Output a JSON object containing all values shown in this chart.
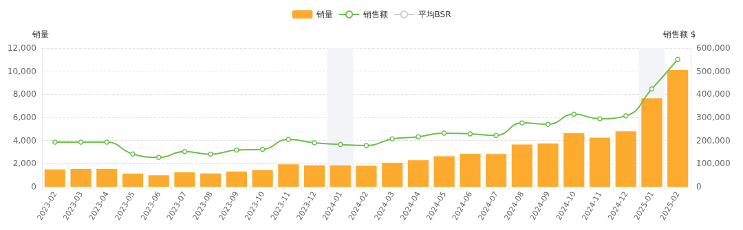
{
  "chart_data": {
    "type": "bar",
    "ylabel": "销量",
    "y2label": "销售额 $",
    "categories": [
      "2023-02",
      "2023-03",
      "2023-04",
      "2023-05",
      "2023-06",
      "2023-07",
      "2023-08",
      "2023-09",
      "2023-10",
      "2023-11",
      "2023-12",
      "2024-01",
      "2024-02",
      "2024-03",
      "2024-04",
      "2024-05",
      "2024-06",
      "2024-07",
      "2024-08",
      "2024-09",
      "2024-10",
      "2024-11",
      "2024-12",
      "2025-01",
      "2025-02"
    ],
    "series": [
      {
        "name": "销量",
        "color": "#fdab2f",
        "values": [
          1500,
          1550,
          1550,
          1150,
          1000,
          1250,
          1150,
          1320,
          1430,
          1950,
          1850,
          1850,
          1820,
          2080,
          2300,
          2650,
          2850,
          2830,
          3650,
          3750,
          4650,
          4250,
          4800,
          7650,
          10100
        ]
      },
      {
        "name": "销售额",
        "type": "line",
        "axis": "y2",
        "color": "#6cc04a",
        "values": [
          193000,
          193000,
          193000,
          142000,
          127000,
          152000,
          141000,
          159000,
          162000,
          205000,
          190000,
          183000,
          178000,
          207000,
          216000,
          232000,
          229000,
          222000,
          276000,
          270000,
          314000,
          294000,
          307000,
          423000,
          551000
        ]
      },
      {
        "name": "平均BSR",
        "type": "line",
        "color": "#d0d0d0",
        "values": [
          null,
          null,
          null,
          null,
          null,
          null,
          null,
          null,
          null,
          null,
          null,
          null,
          null,
          null,
          null,
          null,
          null,
          null,
          null,
          null,
          null,
          null,
          null,
          null,
          null
        ]
      }
    ],
    "ylim": [
      0,
      12000
    ],
    "yticks": [
      0,
      {
        "value": 2000,
        "label": "2,000"
      },
      {
        "value": 4000,
        "label": "4,000"
      },
      {
        "value": 6000,
        "label": "6,000"
      },
      {
        "value": 8000,
        "label": "8,000"
      },
      {
        "value": 10000,
        "label": "10,000"
      },
      {
        "value": 12000,
        "label": "12,000"
      }
    ],
    "y2lim": [
      0,
      600000
    ],
    "y2ticks": [
      0,
      {
        "value": 100000,
        "label": "100,000"
      },
      {
        "value": 200000,
        "label": "200,000"
      },
      {
        "value": 300000,
        "label": "300,000"
      },
      {
        "value": 400000,
        "label": "400,000"
      },
      {
        "value": 500000,
        "label": "500,000"
      },
      {
        "value": 600000,
        "label": "600,000"
      }
    ],
    "bands": [
      {
        "axis": "x",
        "from": "2024-01",
        "to": "2024-01",
        "color": "#f3f4f8"
      },
      {
        "axis": "x",
        "from": "2025-01",
        "to": "2025-01",
        "color": "#f3f4f8"
      }
    ],
    "grid": "y",
    "legend": "top",
    "marker": "circle",
    "line_style": "solid"
  }
}
